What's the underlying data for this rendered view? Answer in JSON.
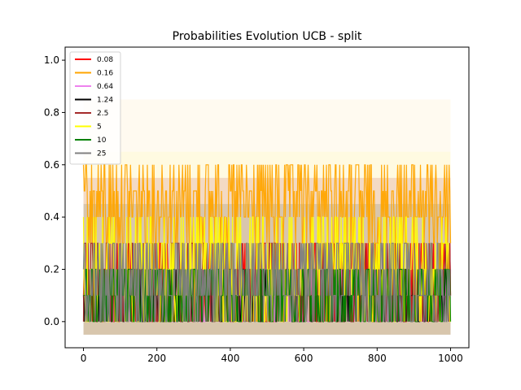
{
  "chart_data": {
    "type": "line",
    "title": "Probabilities Evolution UCB  - split",
    "xlabel": "",
    "ylabel": "",
    "xlim": [
      -50,
      1050
    ],
    "ylim": [
      -0.1,
      1.05
    ],
    "x_ticks": [
      0,
      200,
      400,
      600,
      800,
      1000
    ],
    "y_ticks": [
      0.0,
      0.2,
      0.4,
      0.6,
      0.8,
      1.0
    ],
    "x_tick_labels": [
      "0",
      "200",
      "400",
      "600",
      "800",
      "1000"
    ],
    "y_tick_labels": [
      "0.0",
      "0.2",
      "0.4",
      "0.6",
      "0.8",
      "1.0"
    ],
    "grid": false,
    "legend_position": "top-left",
    "x_range": [
      0,
      1000
    ],
    "series": [
      {
        "name": "0.08",
        "color": "#ff0000",
        "levels": [
          0.3,
          0.2,
          0.1,
          0.0
        ],
        "typical": 0.2
      },
      {
        "name": "0.16",
        "color": "#ffa500",
        "levels": [
          0.6,
          0.5,
          0.4,
          0.3
        ],
        "typical": 0.45
      },
      {
        "name": "0.64",
        "color": "#ee82ee",
        "levels": [
          0.2,
          0.1,
          0.0
        ],
        "typical": 0.1
      },
      {
        "name": "1.24",
        "color": "#000000",
        "levels": [
          0.2,
          0.1,
          0.0
        ],
        "typical": 0.1
      },
      {
        "name": "2.5",
        "color": "#a52a2a",
        "levels": [
          0.3,
          0.2,
          0.1,
          0.0
        ],
        "typical": 0.15
      },
      {
        "name": "5",
        "color": "#ffff00",
        "levels": [
          0.4,
          0.3,
          0.2,
          0.1,
          0.0
        ],
        "typical": 0.1
      },
      {
        "name": "10",
        "color": "#008000",
        "levels": [
          0.2,
          0.1,
          0.0
        ],
        "typical": 0.05
      },
      {
        "name": "25",
        "color": "#808080",
        "levels": [
          0.3,
          0.2,
          0.1,
          0.0
        ],
        "typical": 0.1
      }
    ]
  }
}
